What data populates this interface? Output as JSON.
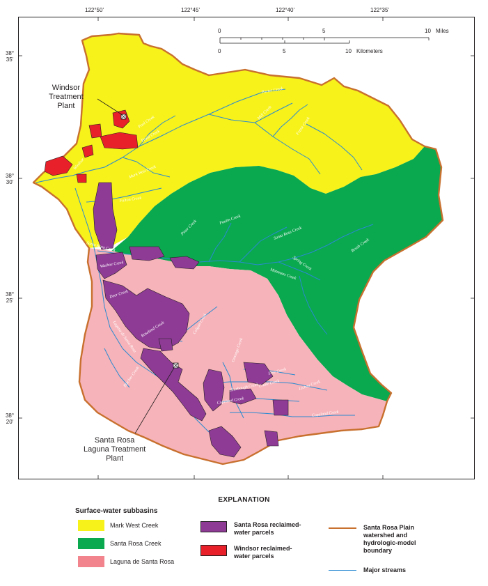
{
  "colors": {
    "mark_west": "#f7f21a",
    "santa_rosa_creek": "#0aa84f",
    "laguna": "#f6b3b9",
    "laguna_legend": "#f2848d",
    "santa_rosa_parcels": "#8e3b96",
    "windsor_parcels": "#e8202a",
    "boundary": "#c8702e",
    "streams": "#2a8ad1"
  },
  "graticule": {
    "longitudes": [
      "122°50'",
      "122°45'",
      "122°40'",
      "122°35'"
    ],
    "latitudes": [
      "38°\n35'",
      "38°\n30'",
      "38°\n25'",
      "38°\n20'"
    ]
  },
  "scale_bar": {
    "miles_ticks": [
      "0",
      "5",
      "10"
    ],
    "miles_unit": "Miles",
    "km_ticks": [
      "0",
      "5",
      "10"
    ],
    "km_unit": "Kilometers"
  },
  "map_labels": {
    "windsor_plant": "Windsor\nTreatment\nPlant",
    "laguna_plant": "Santa Rosa\nLaguna Treatment\nPlant"
  },
  "streams": {
    "porter": "Porter Creek",
    "mill": "Mill Creek",
    "franz": "Franz Creek",
    "pool": "Pool Creek",
    "pruitt": "Pruitt Creek",
    "windsor": "Windsor",
    "mark_west": "Mark West Creek",
    "fulton": "Fulton Creek",
    "piner": "Piner Creek",
    "paulin": "Paulin Creek",
    "santa_rosa_creek": "Santa Rosa Creek",
    "santa_rosa_creek_lower": "Santa Rosa Creek",
    "brush": "Brush Creek",
    "spring": "Spring Creek",
    "matanzas": "Matanzas Creek",
    "roseland": "Roseland Creek",
    "colgan": "Colgan Creek",
    "laguna_de_santa_rosa": "Laguna de Santa Rosa",
    "blucher": "Blucher Creek",
    "hinebaugh": "Hinebaugh Creek",
    "crane": "Crane Creek",
    "five": "Five Creek",
    "copeland": "Copeland Creek",
    "lichau": "Lichau Creek",
    "gossage": "Gossage Creek",
    "washoe": "Washoe Creek",
    "deer": "Deer Creek"
  },
  "legend": {
    "title": "EXPLANATION",
    "subbasins_heading": "Surface-water subbasins",
    "mark_west": "Mark West Creek",
    "santa_rosa_creek": "Santa Rosa Creek",
    "laguna": "Laguna de Santa Rosa",
    "santa_rosa_parcels": "Santa Rosa reclaimed-\nwater parcels",
    "windsor_parcels": "Windsor reclaimed-\nwater parcels",
    "boundary": "Santa Rosa Plain\nwatershed and\nhydrologic-model\nboundary",
    "streams": "Major streams"
  }
}
